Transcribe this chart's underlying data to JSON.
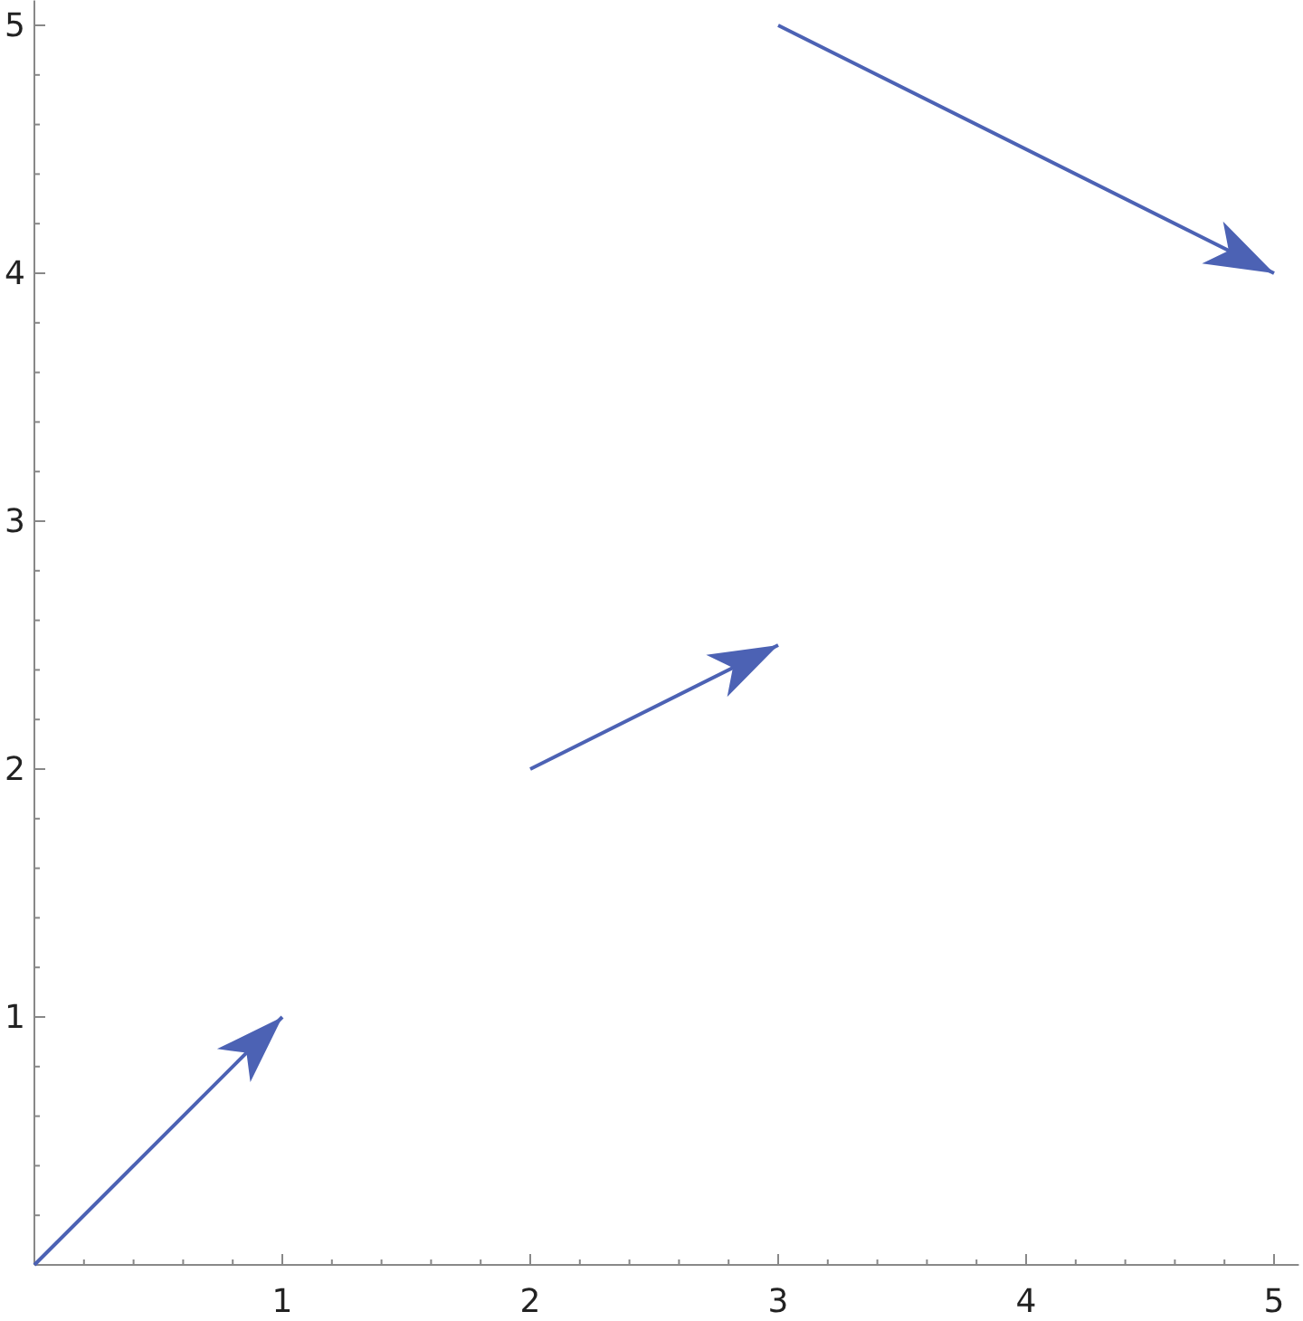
{
  "chart_data": {
    "type": "line",
    "marker": "none",
    "line_style": "solid",
    "grid": false,
    "xlim": [
      0,
      5.1
    ],
    "ylim": [
      0,
      5.1
    ],
    "xticks": [
      {
        "value": 0.2,
        "label": null
      },
      {
        "value": 0.4,
        "label": null
      },
      {
        "value": 0.6,
        "label": null
      },
      {
        "value": 0.8,
        "label": null
      },
      1,
      {
        "value": 1.2,
        "label": null
      },
      {
        "value": 1.4,
        "label": null
      },
      {
        "value": 1.6,
        "label": null
      },
      {
        "value": 1.8,
        "label": null
      },
      2,
      {
        "value": 2.2,
        "label": null
      },
      {
        "value": 2.4,
        "label": null
      },
      {
        "value": 2.6,
        "label": null
      },
      {
        "value": 2.8,
        "label": null
      },
      3,
      {
        "value": 3.2,
        "label": null
      },
      {
        "value": 3.4,
        "label": null
      },
      {
        "value": 3.6,
        "label": null
      },
      {
        "value": 3.8,
        "label": null
      },
      4,
      {
        "value": 4.2,
        "label": null
      },
      {
        "value": 4.4,
        "label": null
      },
      {
        "value": 4.6,
        "label": null
      },
      {
        "value": 4.8,
        "label": null
      },
      5
    ],
    "yticks": [
      {
        "value": 0.2,
        "label": null
      },
      {
        "value": 0.4,
        "label": null
      },
      {
        "value": 0.6,
        "label": null
      },
      {
        "value": 0.8,
        "label": null
      },
      1,
      {
        "value": 1.2,
        "label": null
      },
      {
        "value": 1.4,
        "label": null
      },
      {
        "value": 1.6,
        "label": null
      },
      {
        "value": 1.8,
        "label": null
      },
      2,
      {
        "value": 2.2,
        "label": null
      },
      {
        "value": 2.4,
        "label": null
      },
      {
        "value": 2.6,
        "label": null
      },
      {
        "value": 2.8,
        "label": null
      },
      3,
      {
        "value": 3.2,
        "label": null
      },
      {
        "value": 3.4,
        "label": null
      },
      {
        "value": 3.6,
        "label": null
      },
      {
        "value": 3.8,
        "label": null
      },
      4,
      {
        "value": 4.2,
        "label": null
      },
      {
        "value": 4.4,
        "label": null
      },
      {
        "value": 4.6,
        "label": null
      },
      {
        "value": 4.8,
        "label": null
      },
      5
    ],
    "series": [
      {
        "color": "#4c62b4",
        "x": [
          0,
          1
        ],
        "values": [
          0,
          1
        ]
      },
      {
        "color": "#4c62b4",
        "x": [
          2,
          3
        ],
        "values": [
          2,
          2.5
        ]
      },
      {
        "color": "#4c62b4",
        "x": [
          3,
          5
        ],
        "values": [
          5,
          4
        ]
      }
    ]
  }
}
